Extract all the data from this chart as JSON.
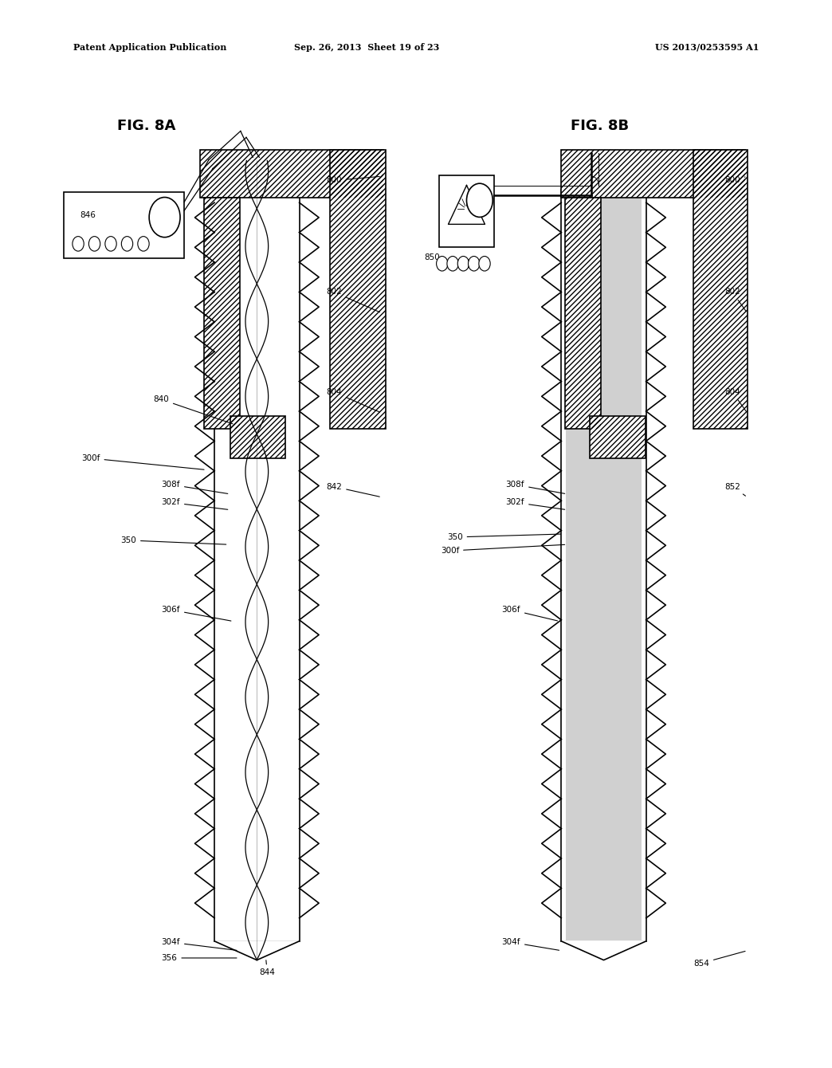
{
  "header_left": "Patent Application Publication",
  "header_center": "Sep. 26, 2013  Sheet 19 of 23",
  "header_right": "US 2013/0253595 A1",
  "fig_a_label": "FIG. 8A",
  "fig_b_label": "FIG. 8B",
  "background_color": "#ffffff",
  "line_color": "#000000"
}
